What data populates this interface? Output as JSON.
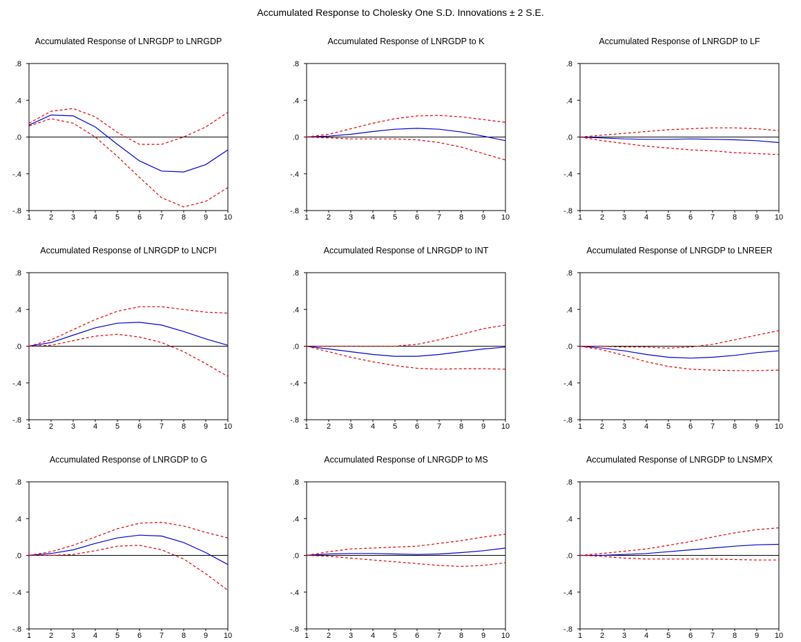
{
  "figure_title": "Accumulated Response to Cholesky One S.D. Innovations ± 2 S.E.",
  "colors": {
    "response": "#0000cc",
    "bands": "#e00000",
    "zero_line": "#000000"
  },
  "chart_data": [
    {
      "type": "line",
      "title": "Accumulated Response of LNRGDP to LNRGDP",
      "x": [
        1,
        2,
        3,
        4,
        5,
        6,
        7,
        8,
        9,
        10
      ],
      "ylim": [
        -0.8,
        0.8
      ],
      "yticks": [
        ".8",
        ".4",
        ".0",
        "-.4",
        "-.8"
      ],
      "series": [
        {
          "role": "response",
          "values": [
            0.13,
            0.24,
            0.23,
            0.11,
            -0.08,
            -0.26,
            -0.37,
            -0.38,
            -0.3,
            -0.14
          ]
        },
        {
          "role": "upper",
          "values": [
            0.15,
            0.28,
            0.31,
            0.22,
            0.05,
            -0.08,
            -0.08,
            0.0,
            0.11,
            0.27
          ]
        },
        {
          "role": "lower",
          "values": [
            0.12,
            0.2,
            0.15,
            0.0,
            -0.21,
            -0.44,
            -0.66,
            -0.76,
            -0.7,
            -0.55
          ]
        }
      ]
    },
    {
      "type": "line",
      "title": "Accumulated Response of LNRGDP to K",
      "x": [
        1,
        2,
        3,
        4,
        5,
        6,
        7,
        8,
        9,
        10
      ],
      "ylim": [
        -0.8,
        0.8
      ],
      "yticks": [
        ".8",
        ".4",
        ".0",
        "-.4",
        "-.8"
      ],
      "series": [
        {
          "role": "response",
          "values": [
            0.0,
            0.01,
            0.03,
            0.06,
            0.085,
            0.095,
            0.085,
            0.055,
            0.01,
            -0.04
          ]
        },
        {
          "role": "upper",
          "values": [
            0.0,
            0.03,
            0.09,
            0.15,
            0.2,
            0.23,
            0.235,
            0.22,
            0.19,
            0.16
          ]
        },
        {
          "role": "lower",
          "values": [
            0.0,
            -0.01,
            -0.02,
            -0.02,
            -0.02,
            -0.03,
            -0.06,
            -0.11,
            -0.18,
            -0.25
          ]
        }
      ]
    },
    {
      "type": "line",
      "title": "Accumulated Response of LNRGDP to LF",
      "x": [
        1,
        2,
        3,
        4,
        5,
        6,
        7,
        8,
        9,
        10
      ],
      "ylim": [
        -0.8,
        0.8
      ],
      "yticks": [
        ".8",
        ".4",
        ".0",
        "-.4",
        "-.8"
      ],
      "series": [
        {
          "role": "response",
          "values": [
            0.0,
            -0.01,
            -0.02,
            -0.025,
            -0.025,
            -0.02,
            -0.025,
            -0.03,
            -0.04,
            -0.06
          ]
        },
        {
          "role": "upper",
          "values": [
            0.0,
            0.02,
            0.04,
            0.06,
            0.08,
            0.09,
            0.1,
            0.1,
            0.09,
            0.07
          ]
        },
        {
          "role": "lower",
          "values": [
            0.0,
            -0.04,
            -0.07,
            -0.1,
            -0.12,
            -0.14,
            -0.15,
            -0.17,
            -0.18,
            -0.19
          ]
        }
      ]
    },
    {
      "type": "line",
      "title": "Accumulated Response of LNRGDP to LNCPI",
      "x": [
        1,
        2,
        3,
        4,
        5,
        6,
        7,
        8,
        9,
        10
      ],
      "ylim": [
        -0.8,
        0.8
      ],
      "yticks": [
        ".8",
        ".4",
        ".0",
        "-.4",
        "-.8"
      ],
      "series": [
        {
          "role": "response",
          "values": [
            0.0,
            0.04,
            0.12,
            0.2,
            0.25,
            0.26,
            0.23,
            0.16,
            0.08,
            0.01
          ]
        },
        {
          "role": "upper",
          "values": [
            0.0,
            0.07,
            0.18,
            0.29,
            0.38,
            0.43,
            0.43,
            0.4,
            0.37,
            0.36
          ]
        },
        {
          "role": "lower",
          "values": [
            0.0,
            0.01,
            0.06,
            0.11,
            0.13,
            0.1,
            0.04,
            -0.06,
            -0.19,
            -0.33
          ]
        }
      ]
    },
    {
      "type": "line",
      "title": "Accumulated Response of LNRGDP to INT",
      "x": [
        1,
        2,
        3,
        4,
        5,
        6,
        7,
        8,
        9,
        10
      ],
      "ylim": [
        -0.8,
        0.8
      ],
      "yticks": [
        ".8",
        ".4",
        ".0",
        "-.4",
        "-.8"
      ],
      "series": [
        {
          "role": "response",
          "values": [
            0.0,
            -0.03,
            -0.06,
            -0.09,
            -0.11,
            -0.11,
            -0.09,
            -0.06,
            -0.03,
            -0.01
          ]
        },
        {
          "role": "upper",
          "values": [
            0.0,
            0.0,
            0.0,
            0.0,
            0.0,
            0.02,
            0.07,
            0.13,
            0.19,
            0.23
          ]
        },
        {
          "role": "lower",
          "values": [
            0.0,
            -0.06,
            -0.12,
            -0.17,
            -0.21,
            -0.24,
            -0.25,
            -0.245,
            -0.245,
            -0.25
          ]
        }
      ]
    },
    {
      "type": "line",
      "title": "Accumulated Response of LNRGDP to LNREER",
      "x": [
        1,
        2,
        3,
        4,
        5,
        6,
        7,
        8,
        9,
        10
      ],
      "ylim": [
        -0.8,
        0.8
      ],
      "yticks": [
        ".8",
        ".4",
        ".0",
        "-.4",
        "-.8"
      ],
      "series": [
        {
          "role": "response",
          "values": [
            0.0,
            -0.02,
            -0.05,
            -0.09,
            -0.12,
            -0.13,
            -0.12,
            -0.1,
            -0.07,
            -0.05
          ]
        },
        {
          "role": "upper",
          "values": [
            0.0,
            0.0,
            -0.01,
            -0.01,
            -0.02,
            -0.01,
            0.02,
            0.07,
            0.12,
            0.17
          ]
        },
        {
          "role": "lower",
          "values": [
            0.0,
            -0.04,
            -0.1,
            -0.17,
            -0.22,
            -0.25,
            -0.26,
            -0.265,
            -0.265,
            -0.26
          ]
        }
      ]
    },
    {
      "type": "line",
      "title": "Accumulated Response of LNRGDP to G",
      "x": [
        1,
        2,
        3,
        4,
        5,
        6,
        7,
        8,
        9,
        10
      ],
      "ylim": [
        -0.8,
        0.8
      ],
      "yticks": [
        ".8",
        ".4",
        ".0",
        "-.4",
        "-.8"
      ],
      "series": [
        {
          "role": "response",
          "values": [
            0.0,
            0.02,
            0.06,
            0.13,
            0.19,
            0.22,
            0.21,
            0.14,
            0.03,
            -0.1
          ]
        },
        {
          "role": "upper",
          "values": [
            0.0,
            0.04,
            0.11,
            0.2,
            0.29,
            0.35,
            0.36,
            0.32,
            0.25,
            0.19
          ]
        },
        {
          "role": "lower",
          "values": [
            0.0,
            0.0,
            0.01,
            0.05,
            0.1,
            0.11,
            0.06,
            -0.04,
            -0.2,
            -0.38
          ]
        }
      ]
    },
    {
      "type": "line",
      "title": "Accumulated Response of LNRGDP to MS",
      "x": [
        1,
        2,
        3,
        4,
        5,
        6,
        7,
        8,
        9,
        10
      ],
      "ylim": [
        -0.8,
        0.8
      ],
      "yticks": [
        ".8",
        ".4",
        ".0",
        "-.4",
        "-.8"
      ],
      "series": [
        {
          "role": "response",
          "values": [
            0.0,
            0.015,
            0.02,
            0.02,
            0.015,
            0.01,
            0.015,
            0.03,
            0.05,
            0.08
          ]
        },
        {
          "role": "upper",
          "values": [
            0.0,
            0.04,
            0.07,
            0.08,
            0.09,
            0.1,
            0.13,
            0.16,
            0.2,
            0.23
          ]
        },
        {
          "role": "lower",
          "values": [
            0.0,
            -0.01,
            -0.03,
            -0.05,
            -0.07,
            -0.09,
            -0.11,
            -0.12,
            -0.11,
            -0.08
          ]
        }
      ]
    },
    {
      "type": "line",
      "title": "Accumulated Response of LNRGDP to LNSMPX",
      "x": [
        1,
        2,
        3,
        4,
        5,
        6,
        7,
        8,
        9,
        10
      ],
      "ylim": [
        -0.8,
        0.8
      ],
      "yticks": [
        ".8",
        ".4",
        ".0",
        "-.4",
        "-.8"
      ],
      "series": [
        {
          "role": "response",
          "values": [
            0.0,
            0.0,
            0.01,
            0.02,
            0.04,
            0.06,
            0.08,
            0.1,
            0.115,
            0.12
          ]
        },
        {
          "role": "upper",
          "values": [
            0.0,
            0.02,
            0.045,
            0.07,
            0.11,
            0.15,
            0.2,
            0.245,
            0.28,
            0.3
          ]
        },
        {
          "role": "lower",
          "values": [
            0.0,
            -0.01,
            -0.03,
            -0.04,
            -0.04,
            -0.04,
            -0.04,
            -0.045,
            -0.05,
            -0.05
          ]
        }
      ]
    }
  ]
}
